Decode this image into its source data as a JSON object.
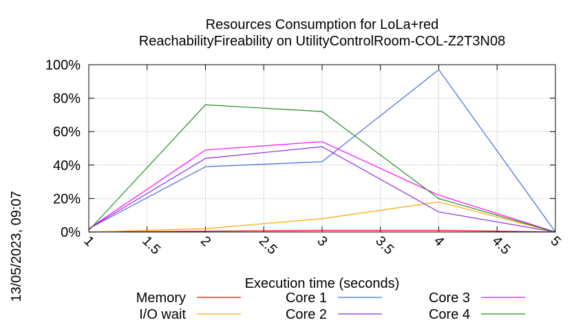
{
  "chart_data": {
    "type": "line",
    "title_line1": "Resources Consumption for LoLa+red",
    "title_line2": "ReachabilityFireability on UtilityControlRoom-COL-Z2T3N08",
    "xlabel": "Execution time (seconds)",
    "ylabel": "",
    "timestamp": "13/05/2023, 09:07",
    "xlim": [
      1,
      5
    ],
    "ylim": [
      0,
      100
    ],
    "x_ticks": [
      "1",
      "1.5",
      "2",
      "2.5",
      "3",
      "3.5",
      "4",
      "4.5",
      "5"
    ],
    "y_ticks": [
      "0%",
      "20%",
      "40%",
      "60%",
      "80%",
      "100%"
    ],
    "grid": true,
    "legend_position": "bottom",
    "series": [
      {
        "name": "Memory",
        "color": "#ff0000",
        "x": [
          1,
          2,
          3,
          4,
          5
        ],
        "values": [
          0,
          0.5,
          1,
          1,
          0
        ]
      },
      {
        "name": "I/O wait",
        "color": "#ffa500",
        "x": [
          1,
          2,
          3,
          4,
          5
        ],
        "values": [
          0,
          2,
          8,
          18,
          0
        ]
      },
      {
        "name": "Core 1",
        "color": "#4169e1",
        "x": [
          1,
          2,
          3,
          4,
          5
        ],
        "values": [
          2,
          39,
          42,
          97,
          0
        ]
      },
      {
        "name": "Core 2",
        "color": "#8a2be2",
        "x": [
          1,
          2,
          3,
          4,
          5
        ],
        "values": [
          2,
          44,
          51,
          12,
          0
        ]
      },
      {
        "name": "Core 3",
        "color": "#ff00ff",
        "x": [
          1,
          2,
          3,
          4,
          5
        ],
        "values": [
          2,
          49,
          54,
          22,
          0
        ]
      },
      {
        "name": "Core 4",
        "color": "#228b22",
        "x": [
          1,
          2,
          3,
          4,
          5
        ],
        "values": [
          1,
          76,
          72,
          20,
          0
        ]
      }
    ]
  }
}
